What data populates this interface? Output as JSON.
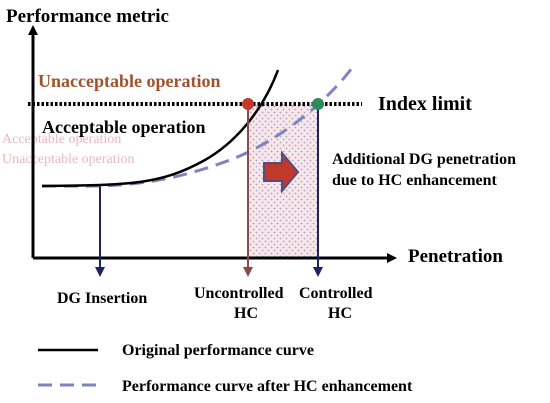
{
  "diagram": {
    "y_axis_label": "Performance metric",
    "x_axis_label": "Penetration",
    "region_unacceptable": "Unacceptable operation",
    "region_acceptable": "Acceptable operation",
    "index_limit_label": "Index limit",
    "additional_line1": "Additional DG penetration",
    "additional_line2": "due to HC enhancement",
    "dg_insertion_label": "DG Insertion",
    "uncontrolled_line1": "Uncontrolled",
    "uncontrolled_line2": "HC",
    "controlled_line1": "Controlled",
    "controlled_line2": "HC",
    "ghost_line1": "Acceptable operation",
    "ghost_line2": "Unacceptable operation"
  },
  "legend": {
    "original_label": "Original performance curve",
    "enhanced_label": "Performance curve after HC enhancement"
  },
  "colors": {
    "axis": "#000000",
    "original_curve": "#000000",
    "enhanced_curve": "#7f83c3",
    "down_arrows": "#1f2460",
    "uncontrolled_point": "#c0392b",
    "uncontrolled_drop": "#8b4a4a",
    "controlled_point": "#2e8b57",
    "region_unacceptable_text": "#a0522d",
    "fill_dots": "#9aa7c9",
    "fill_pink": "#f4cfd6",
    "arrow_fill": "#c0392b",
    "arrow_outline": "#5a4a7a"
  }
}
